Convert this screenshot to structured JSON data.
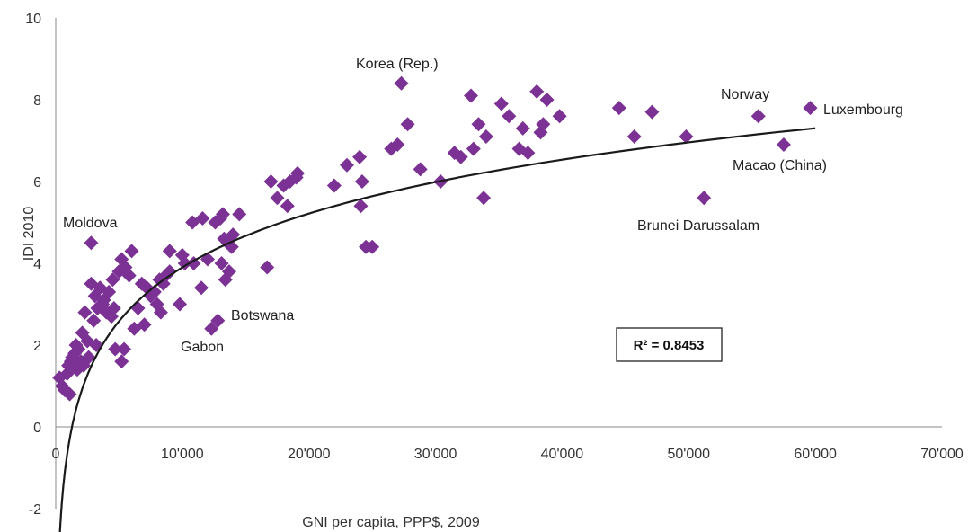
{
  "chart_data": {
    "type": "scatter",
    "xlabel": "GNI per capita, PPP$, 2009",
    "ylabel": "IDI 2010",
    "xlim": [
      0,
      70000
    ],
    "ylim": [
      -2,
      10
    ],
    "x_ticks": [
      "0",
      "10'000",
      "20'000",
      "30'000",
      "40'000",
      "50'000",
      "60'000",
      "70'000"
    ],
    "y_ticks": [
      "-2",
      "0",
      "2",
      "4",
      "6",
      "8",
      "10"
    ],
    "grid": false,
    "marker_color": "#7B3294",
    "trendline": {
      "type": "logarithmic",
      "a": 1.9,
      "b": -13.6,
      "x_from": 300,
      "x_to": 60000,
      "color": "#1a1a1a"
    },
    "r2_label": "R² = 0.8453",
    "annotations": [
      {
        "text": "Korea (Rep.)",
        "x": 27300,
        "y": 8.4
      },
      {
        "text": "Norway",
        "x": 55500,
        "y": 7.6
      },
      {
        "text": "Luxembourg",
        "x": 59600,
        "y": 7.8
      },
      {
        "text": "Macao (China)",
        "x": 57500,
        "y": 6.9
      },
      {
        "text": "Brunei Darussalam",
        "x": 51200,
        "y": 5.6
      },
      {
        "text": "Moldova",
        "x": 2800,
        "y": 4.5
      },
      {
        "text": "Botswana",
        "x": 12800,
        "y": 2.6
      },
      {
        "text": "Gabon",
        "x": 12300,
        "y": 2.4
      }
    ],
    "series": [
      {
        "points": [
          [
            300,
            1.2
          ],
          [
            500,
            1.0
          ],
          [
            700,
            0.9
          ],
          [
            900,
            1.3
          ],
          [
            1000,
            1.5
          ],
          [
            1100,
            0.8
          ],
          [
            1200,
            1.6
          ],
          [
            1300,
            1.7
          ],
          [
            1500,
            1.8
          ],
          [
            1600,
            2.0
          ],
          [
            1700,
            1.4
          ],
          [
            1800,
            1.9
          ],
          [
            2000,
            1.6
          ],
          [
            2100,
            2.3
          ],
          [
            2200,
            1.5
          ],
          [
            2300,
            2.8
          ],
          [
            2500,
            2.1
          ],
          [
            2600,
            1.7
          ],
          [
            2800,
            3.5
          ],
          [
            2800,
            4.5
          ],
          [
            3000,
            2.6
          ],
          [
            3100,
            3.2
          ],
          [
            3200,
            2.0
          ],
          [
            3300,
            2.9
          ],
          [
            3500,
            3.4
          ],
          [
            3700,
            3.0
          ],
          [
            3800,
            3.1
          ],
          [
            4000,
            2.8
          ],
          [
            4200,
            3.3
          ],
          [
            4400,
            2.7
          ],
          [
            4500,
            3.6
          ],
          [
            4600,
            2.9
          ],
          [
            4700,
            1.9
          ],
          [
            5000,
            3.8
          ],
          [
            5200,
            4.1
          ],
          [
            5200,
            1.6
          ],
          [
            5400,
            1.9
          ],
          [
            5500,
            3.9
          ],
          [
            5800,
            3.7
          ],
          [
            6000,
            4.3
          ],
          [
            6200,
            2.4
          ],
          [
            6500,
            2.9
          ],
          [
            6800,
            3.5
          ],
          [
            7000,
            2.5
          ],
          [
            7200,
            3.4
          ],
          [
            7500,
            3.2
          ],
          [
            7800,
            3.3
          ],
          [
            8000,
            3.0
          ],
          [
            8200,
            3.6
          ],
          [
            8300,
            2.8
          ],
          [
            8500,
            3.5
          ],
          [
            8700,
            3.7
          ],
          [
            9000,
            3.8
          ],
          [
            9000,
            4.3
          ],
          [
            9800,
            3.0
          ],
          [
            10000,
            4.2
          ],
          [
            10200,
            4.0
          ],
          [
            10800,
            5.0
          ],
          [
            10900,
            4.0
          ],
          [
            11500,
            3.4
          ],
          [
            11600,
            5.1
          ],
          [
            12000,
            4.1
          ],
          [
            12300,
            2.4
          ],
          [
            12600,
            5.0
          ],
          [
            12800,
            2.6
          ],
          [
            13000,
            5.1
          ],
          [
            13100,
            4.0
          ],
          [
            13200,
            5.2
          ],
          [
            13300,
            4.6
          ],
          [
            13400,
            3.6
          ],
          [
            13600,
            4.5
          ],
          [
            13700,
            3.8
          ],
          [
            13900,
            4.4
          ],
          [
            14000,
            4.7
          ],
          [
            14500,
            5.2
          ],
          [
            16700,
            3.9
          ],
          [
            17000,
            6.0
          ],
          [
            17500,
            5.6
          ],
          [
            18000,
            5.9
          ],
          [
            18300,
            5.4
          ],
          [
            18500,
            6.0
          ],
          [
            19000,
            6.1
          ],
          [
            19100,
            6.2
          ],
          [
            22000,
            5.9
          ],
          [
            23000,
            6.4
          ],
          [
            24000,
            6.6
          ],
          [
            24100,
            5.4
          ],
          [
            24200,
            6.0
          ],
          [
            24500,
            4.4
          ],
          [
            25000,
            4.4
          ],
          [
            26500,
            6.8
          ],
          [
            27000,
            6.9
          ],
          [
            27300,
            8.4
          ],
          [
            27800,
            7.4
          ],
          [
            28800,
            6.3
          ],
          [
            30400,
            6.0
          ],
          [
            31500,
            6.7
          ],
          [
            32000,
            6.6
          ],
          [
            32800,
            8.1
          ],
          [
            33000,
            6.8
          ],
          [
            33400,
            7.4
          ],
          [
            33800,
            5.6
          ],
          [
            34000,
            7.1
          ],
          [
            35200,
            7.9
          ],
          [
            35800,
            7.6
          ],
          [
            36600,
            6.8
          ],
          [
            36900,
            7.3
          ],
          [
            37300,
            6.7
          ],
          [
            38000,
            8.2
          ],
          [
            38300,
            7.2
          ],
          [
            38500,
            7.4
          ],
          [
            38800,
            8.0
          ],
          [
            39800,
            7.6
          ],
          [
            44500,
            7.8
          ],
          [
            45700,
            7.1
          ],
          [
            47100,
            7.7
          ],
          [
            49800,
            7.1
          ],
          [
            51200,
            5.6
          ],
          [
            55500,
            7.6
          ],
          [
            57500,
            6.9
          ],
          [
            59600,
            7.8
          ]
        ]
      }
    ]
  }
}
